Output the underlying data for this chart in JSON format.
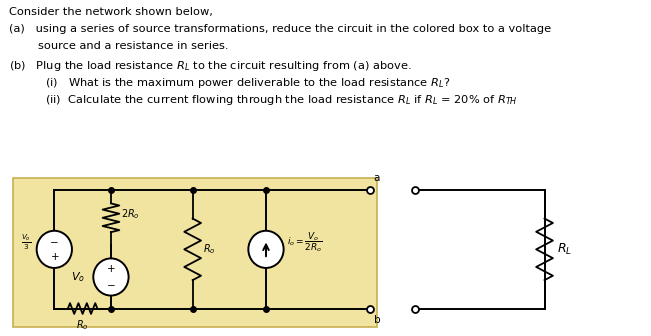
{
  "background_color": "#ffffff",
  "box_color": "#f0e4a0",
  "box_border_color": "#c8b050",
  "wire_color": "#000000",
  "text_color": "#000000",
  "title_line": "Consider the network shown below,",
  "line_a1": "(a)   using a series of source transformations, reduce the circuit in the colored box to a voltage",
  "line_a2": "        source and a resistance in series.",
  "line_b": "(b)   Plug the load resistance $R_L$ to the circuit resulting from (a) above.",
  "line_i": "          (i)   What is the maximum power deliverable to the load resistance $R_L$?",
  "line_ii": "          (ii)  Calculate the current flowing through the load resistance $R_L$ if $R_L$ = 20% of $R_{TH}$"
}
